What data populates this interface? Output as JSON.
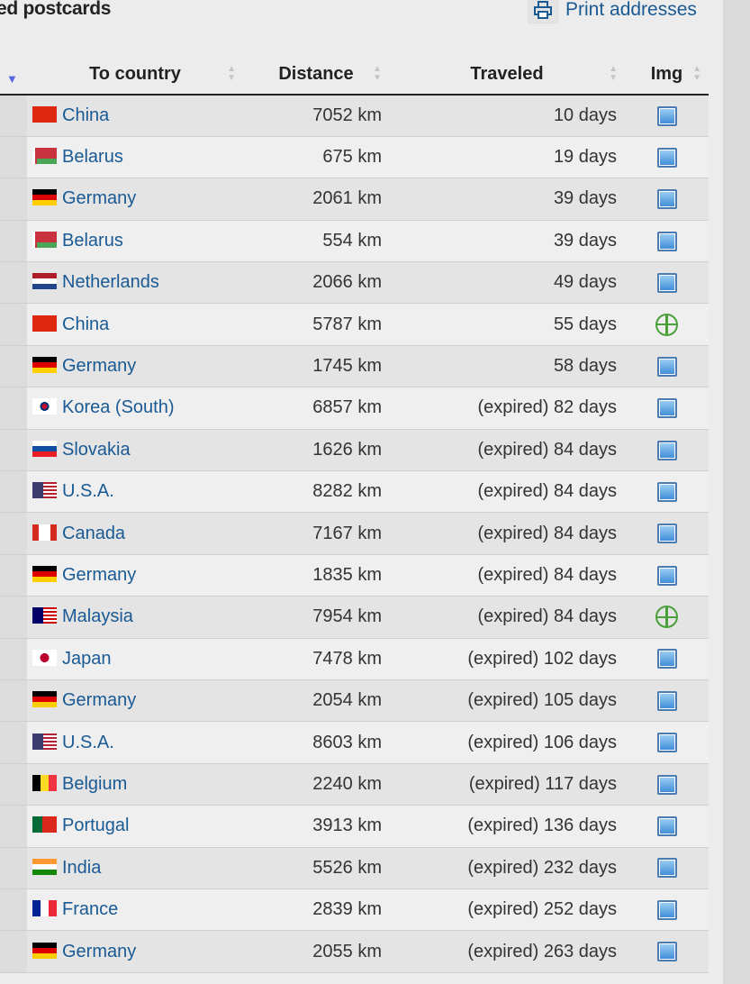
{
  "header": {
    "title": "ed postcards",
    "print_label": "Print addresses",
    "print_icon": "printer-icon"
  },
  "table": {
    "columns": [
      "To country",
      "Distance",
      "Traveled",
      "Img"
    ],
    "rows": [
      {
        "flag": "cn",
        "country": "China",
        "distance": "7052 km",
        "traveled": "10 days",
        "img": "image"
      },
      {
        "flag": "by",
        "country": "Belarus",
        "distance": "675 km",
        "traveled": "19 days",
        "img": "image"
      },
      {
        "flag": "de",
        "country": "Germany",
        "distance": "2061 km",
        "traveled": "39 days",
        "img": "image"
      },
      {
        "flag": "by",
        "country": "Belarus",
        "distance": "554 km",
        "traveled": "39 days",
        "img": "image"
      },
      {
        "flag": "nl",
        "country": "Netherlands",
        "distance": "2066 km",
        "traveled": "49 days",
        "img": "image"
      },
      {
        "flag": "cn",
        "country": "China",
        "distance": "5787 km",
        "traveled": "55 days",
        "img": "add"
      },
      {
        "flag": "de",
        "country": "Germany",
        "distance": "1745 km",
        "traveled": "58 days",
        "img": "image"
      },
      {
        "flag": "kr",
        "country": "Korea (South)",
        "distance": "6857 km",
        "traveled": "(expired) 82 days",
        "img": "image"
      },
      {
        "flag": "sk",
        "country": "Slovakia",
        "distance": "1626 km",
        "traveled": "(expired) 84 days",
        "img": "image"
      },
      {
        "flag": "us",
        "country": "U.S.A.",
        "distance": "8282 km",
        "traveled": "(expired) 84 days",
        "img": "image"
      },
      {
        "flag": "ca",
        "country": "Canada",
        "distance": "7167 km",
        "traveled": "(expired) 84 days",
        "img": "image"
      },
      {
        "flag": "de",
        "country": "Germany",
        "distance": "1835 km",
        "traveled": "(expired) 84 days",
        "img": "image"
      },
      {
        "flag": "my",
        "country": "Malaysia",
        "distance": "7954 km",
        "traveled": "(expired) 84 days",
        "img": "add"
      },
      {
        "flag": "jp",
        "country": "Japan",
        "distance": "7478 km",
        "traveled": "(expired) 102 days",
        "img": "image"
      },
      {
        "flag": "de",
        "country": "Germany",
        "distance": "2054 km",
        "traveled": "(expired) 105 days",
        "img": "image"
      },
      {
        "flag": "us",
        "country": "U.S.A.",
        "distance": "8603 km",
        "traveled": "(expired) 106 days",
        "img": "image"
      },
      {
        "flag": "be",
        "country": "Belgium",
        "distance": "2240 km",
        "traveled": "(expired) 117 days",
        "img": "image"
      },
      {
        "flag": "pt",
        "country": "Portugal",
        "distance": "3913 km",
        "traveled": "(expired) 136 days",
        "img": "image"
      },
      {
        "flag": "in",
        "country": "India",
        "distance": "5526 km",
        "traveled": "(expired) 232 days",
        "img": "image"
      },
      {
        "flag": "fr",
        "country": "France",
        "distance": "2839 km",
        "traveled": "(expired) 252 days",
        "img": "image"
      },
      {
        "flag": "de",
        "country": "Germany",
        "distance": "2055 km",
        "traveled": "(expired) 263 days",
        "img": "image"
      }
    ]
  },
  "colors": {
    "link": "#1a5a94",
    "add_icon": "#4aa03a",
    "image_icon": "#3b8ad6"
  }
}
